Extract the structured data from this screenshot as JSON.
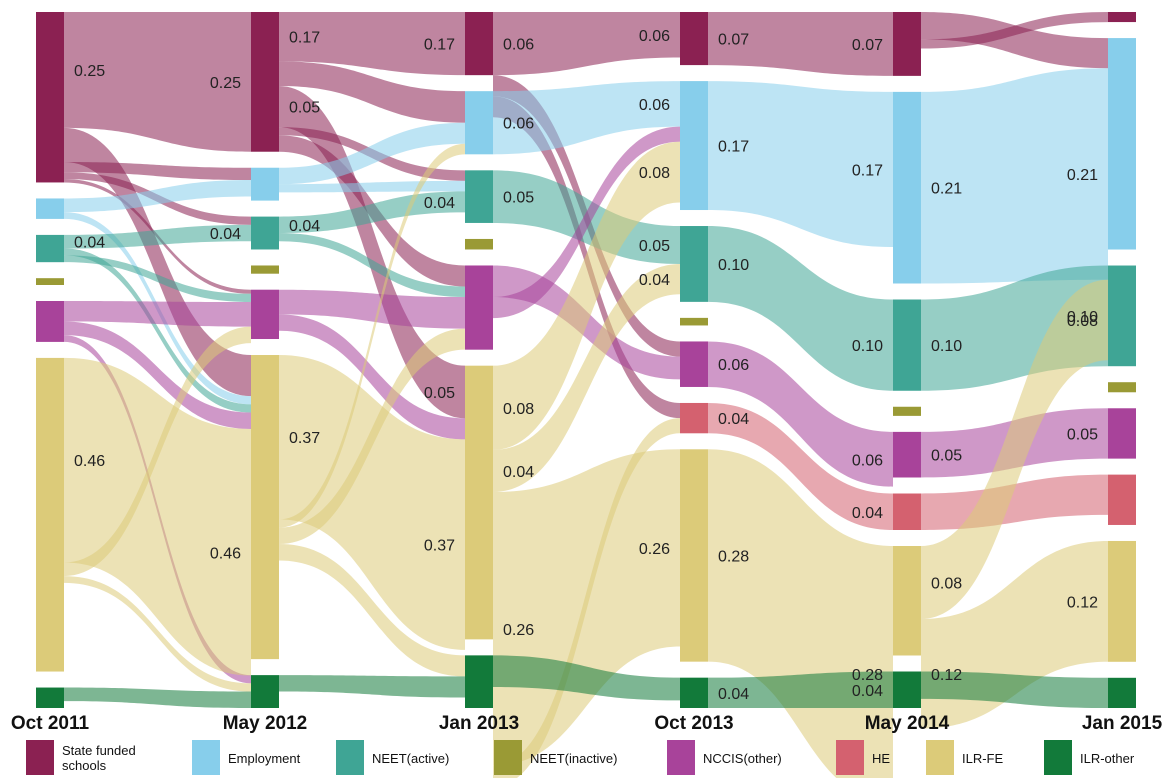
{
  "chart_data": {
    "type": "sankey",
    "stages": [
      "Oct 2011",
      "May 2012",
      "Jan 2013",
      "Oct 2013",
      "May 2014",
      "Jan 2015"
    ],
    "categories": [
      {
        "key": "sfs",
        "label": "State funded schools",
        "legend_lines": [
          "State funded",
          "schools"
        ],
        "color": "#8b2152"
      },
      {
        "key": "emp",
        "label": "Employment",
        "legend_lines": [
          "Employment"
        ],
        "color": "#87ceeb"
      },
      {
        "key": "neeta",
        "label": "NEET(active)",
        "legend_lines": [
          "NEET(active)"
        ],
        "color": "#3fa595"
      },
      {
        "key": "neeti",
        "label": "NEET(inactive)",
        "legend_lines": [
          "NEET(inactive)"
        ],
        "color": "#9a9a35"
      },
      {
        "key": "nccis",
        "label": "NCCIS(other)",
        "legend_lines": [
          "NCCIS(other)"
        ],
        "color": "#a8439a"
      },
      {
        "key": "he",
        "label": "HE",
        "legend_lines": [
          "HE"
        ],
        "color": "#d4616f"
      },
      {
        "key": "ilrfe",
        "label": "ILR-FE",
        "legend_lines": [
          "ILR-FE"
        ],
        "color": "#dccb79"
      },
      {
        "key": "ilro",
        "label": "ILR-other",
        "legend_lines": [
          "ILR-other"
        ],
        "color": "#127a3a"
      }
    ],
    "node_values": [
      {
        "sfs": 0.25,
        "emp": 0.03,
        "neeta": 0.04,
        "neeti": 0.01,
        "nccis": 0.06,
        "he": 0,
        "ilrfe": 0.46,
        "ilro": 0.03
      },
      {
        "sfs": 0.17,
        "emp": 0.04,
        "neeta": 0.04,
        "neeti": 0.01,
        "nccis": 0.06,
        "he": 0,
        "ilrfe": 0.37,
        "ilro": 0.04
      },
      {
        "sfs": 0.06,
        "emp": 0.06,
        "neeta": 0.05,
        "neeti": 0.01,
        "nccis": 0.08,
        "he": 0,
        "ilrfe": 0.26,
        "ilro": 0.05
      },
      {
        "sfs": 0.07,
        "emp": 0.17,
        "neeta": 0.1,
        "neeti": 0.01,
        "nccis": 0.06,
        "he": 0.04,
        "ilrfe": 0.28,
        "ilro": 0.04
      },
      {
        "sfs": 0.07,
        "emp": 0.21,
        "neeta": 0.1,
        "neeti": 0.01,
        "nccis": 0.05,
        "he": 0.04,
        "ilrfe": 0.12,
        "ilro": 0.04
      },
      {
        "sfs": 0.01,
        "emp": 0.21,
        "neeta": 0.1,
        "neeti": 0.01,
        "nccis": 0.05,
        "he": 0.05,
        "ilrfe": 0.12,
        "ilro": 0.03
      }
    ],
    "flows": [
      {
        "from_stage": 0,
        "from": "sfs",
        "to": "sfs",
        "value": 0.17,
        "labels": [
          "0.25",
          "0.25"
        ]
      },
      {
        "from_stage": 0,
        "from": "sfs",
        "to": "ilrfe",
        "value": 0.05,
        "labels": []
      },
      {
        "from_stage": 0,
        "from": "sfs",
        "to": "emp",
        "value": 0.015,
        "labels": []
      },
      {
        "from_stage": 0,
        "from": "sfs",
        "to": "neeta",
        "value": 0.01,
        "labels": []
      },
      {
        "from_stage": 0,
        "from": "sfs",
        "to": "nccis",
        "value": 0.005,
        "labels": []
      },
      {
        "from_stage": 0,
        "from": "emp",
        "to": "emp",
        "value": 0.02,
        "labels": []
      },
      {
        "from_stage": 0,
        "from": "emp",
        "to": "ilrfe",
        "value": 0.01,
        "labels": []
      },
      {
        "from_stage": 0,
        "from": "neeta",
        "to": "neeta",
        "value": 0.02,
        "labels": [
          "0.04",
          "0.04"
        ]
      },
      {
        "from_stage": 0,
        "from": "neeta",
        "to": "ilrfe",
        "value": 0.01,
        "labels": []
      },
      {
        "from_stage": 0,
        "from": "neeta",
        "to": "nccis",
        "value": 0.01,
        "labels": []
      },
      {
        "from_stage": 0,
        "from": "nccis",
        "to": "nccis",
        "value": 0.03,
        "labels": []
      },
      {
        "from_stage": 0,
        "from": "nccis",
        "to": "ilrfe",
        "value": 0.02,
        "labels": []
      },
      {
        "from_stage": 0,
        "from": "nccis",
        "to": "ilro",
        "value": 0.01,
        "labels": []
      },
      {
        "from_stage": 0,
        "from": "ilrfe",
        "to": "ilrfe",
        "value": 0.3,
        "labels": [
          "0.46",
          "0.46"
        ]
      },
      {
        "from_stage": 0,
        "from": "ilrfe",
        "to": "nccis",
        "value": 0.02,
        "labels": []
      },
      {
        "from_stage": 0,
        "from": "ilrfe",
        "to": "ilro",
        "value": 0.01,
        "labels": []
      },
      {
        "from_stage": 0,
        "from": "ilro",
        "to": "ilro",
        "value": 0.02,
        "labels": []
      },
      {
        "from_stage": 1,
        "from": "sfs",
        "to": "sfs",
        "value": 0.06,
        "labels": [
          "0.17",
          "0.17"
        ]
      },
      {
        "from_stage": 1,
        "from": "sfs",
        "to": "emp",
        "value": 0.03,
        "labels": []
      },
      {
        "from_stage": 1,
        "from": "sfs",
        "to": "ilrfe",
        "value": 0.05,
        "labels": [
          "0.05",
          "0.05"
        ]
      },
      {
        "from_stage": 1,
        "from": "sfs",
        "to": "neeta",
        "value": 0.01,
        "labels": []
      },
      {
        "from_stage": 1,
        "from": "sfs",
        "to": "nccis",
        "value": 0.02,
        "labels": []
      },
      {
        "from_stage": 1,
        "from": "emp",
        "to": "emp",
        "value": 0.02,
        "labels": []
      },
      {
        "from_stage": 1,
        "from": "emp",
        "to": "neeta",
        "value": 0.01,
        "labels": []
      },
      {
        "from_stage": 1,
        "from": "neeta",
        "to": "neeta",
        "value": 0.02,
        "labels": [
          "0.04",
          "0.04"
        ]
      },
      {
        "from_stage": 1,
        "from": "neeta",
        "to": "nccis",
        "value": 0.01,
        "labels": []
      },
      {
        "from_stage": 1,
        "from": "nccis",
        "to": "nccis",
        "value": 0.03,
        "labels": []
      },
      {
        "from_stage": 1,
        "from": "nccis",
        "to": "ilrfe",
        "value": 0.02,
        "labels": []
      },
      {
        "from_stage": 1,
        "from": "ilrfe",
        "to": "ilrfe",
        "value": 0.2,
        "labels": [
          "0.37",
          "0.37"
        ]
      },
      {
        "from_stage": 1,
        "from": "ilrfe",
        "to": "emp",
        "value": 0.01,
        "labels": []
      },
      {
        "from_stage": 1,
        "from": "ilrfe",
        "to": "nccis",
        "value": 0.02,
        "labels": []
      },
      {
        "from_stage": 1,
        "from": "ilrfe",
        "to": "ilro",
        "value": 0.02,
        "labels": []
      },
      {
        "from_stage": 1,
        "from": "ilro",
        "to": "ilro",
        "value": 0.02,
        "labels": []
      },
      {
        "from_stage": 2,
        "from": "sfs",
        "to": "sfs",
        "value": 0.06,
        "labels": [
          "0.06",
          "0.06"
        ]
      },
      {
        "from_stage": 2,
        "from": "sfs",
        "to": "nccis",
        "value": 0.02,
        "labels": []
      },
      {
        "from_stage": 2,
        "from": "sfs",
        "to": "he",
        "value": 0.02,
        "labels": []
      },
      {
        "from_stage": 2,
        "from": "emp",
        "to": "emp",
        "value": 0.06,
        "labels": [
          "0.06",
          "0.06"
        ]
      },
      {
        "from_stage": 2,
        "from": "neeta",
        "to": "neeta",
        "value": 0.05,
        "labels": [
          "0.05",
          "0.05"
        ]
      },
      {
        "from_stage": 2,
        "from": "nccis",
        "to": "nccis",
        "value": 0.03,
        "labels": []
      },
      {
        "from_stage": 2,
        "from": "nccis",
        "to": "emp",
        "value": 0.02,
        "labels": []
      },
      {
        "from_stage": 2,
        "from": "ilrfe",
        "to": "emp",
        "value": 0.08,
        "labels": [
          "0.08",
          "0.08"
        ]
      },
      {
        "from_stage": 2,
        "from": "ilrfe",
        "to": "neeta",
        "value": 0.04,
        "labels": [
          "0.04",
          "0.04"
        ]
      },
      {
        "from_stage": 2,
        "from": "ilrfe",
        "to": "ilrfe",
        "value": 0.26,
        "labels": [
          "0.26",
          "0.26"
        ]
      },
      {
        "from_stage": 2,
        "from": "ilrfe",
        "to": "he",
        "value": 0.02,
        "labels": []
      },
      {
        "from_stage": 2,
        "from": "ilro",
        "to": "ilro",
        "value": 0.03,
        "labels": []
      },
      {
        "from_stage": 3,
        "from": "sfs",
        "to": "sfs",
        "value": 0.07,
        "labels": [
          "0.07",
          "0.07"
        ]
      },
      {
        "from_stage": 3,
        "from": "emp",
        "to": "emp",
        "value": 0.17,
        "labels": [
          "0.17",
          "0.17"
        ]
      },
      {
        "from_stage": 3,
        "from": "neeta",
        "to": "neeta",
        "value": 0.1,
        "labels": [
          "0.10",
          "0.10"
        ]
      },
      {
        "from_stage": 3,
        "from": "nccis",
        "to": "nccis",
        "value": 0.06,
        "labels": [
          "0.06",
          "0.06"
        ]
      },
      {
        "from_stage": 3,
        "from": "he",
        "to": "he",
        "value": 0.04,
        "labels": [
          "0.04",
          "0.04"
        ]
      },
      {
        "from_stage": 3,
        "from": "ilrfe",
        "to": "ilrfe",
        "value": 0.28,
        "labels": [
          "0.28",
          "0.28"
        ]
      },
      {
        "from_stage": 3,
        "from": "ilro",
        "to": "ilro",
        "value": 0.04,
        "labels": [
          "0.04",
          "0.04"
        ]
      },
      {
        "from_stage": 4,
        "from": "sfs",
        "to": "emp",
        "value": 0.03,
        "labels": []
      },
      {
        "from_stage": 4,
        "from": "sfs",
        "to": "sfs",
        "value": 0.01,
        "labels": []
      },
      {
        "from_stage": 4,
        "from": "emp",
        "to": "emp",
        "value": 0.21,
        "labels": [
          "0.21",
          "0.21"
        ]
      },
      {
        "from_stage": 4,
        "from": "neeta",
        "to": "neeta",
        "value": 0.1,
        "labels": [
          "0.10",
          "0.10"
        ]
      },
      {
        "from_stage": 4,
        "from": "nccis",
        "to": "nccis",
        "value": 0.05,
        "labels": [
          "0.05",
          "0.05"
        ]
      },
      {
        "from_stage": 4,
        "from": "he",
        "to": "he",
        "value": 0.04,
        "labels": []
      },
      {
        "from_stage": 4,
        "from": "ilrfe",
        "to": "emp",
        "value": 0.08,
        "labels": [
          "0.08",
          "0.08"
        ]
      },
      {
        "from_stage": 4,
        "from": "ilrfe",
        "to": "ilrfe",
        "value": 0.12,
        "labels": [
          "0.12",
          "0.12"
        ]
      },
      {
        "from_stage": 4,
        "from": "ilro",
        "to": "ilro",
        "value": 0.03,
        "labels": []
      }
    ]
  }
}
